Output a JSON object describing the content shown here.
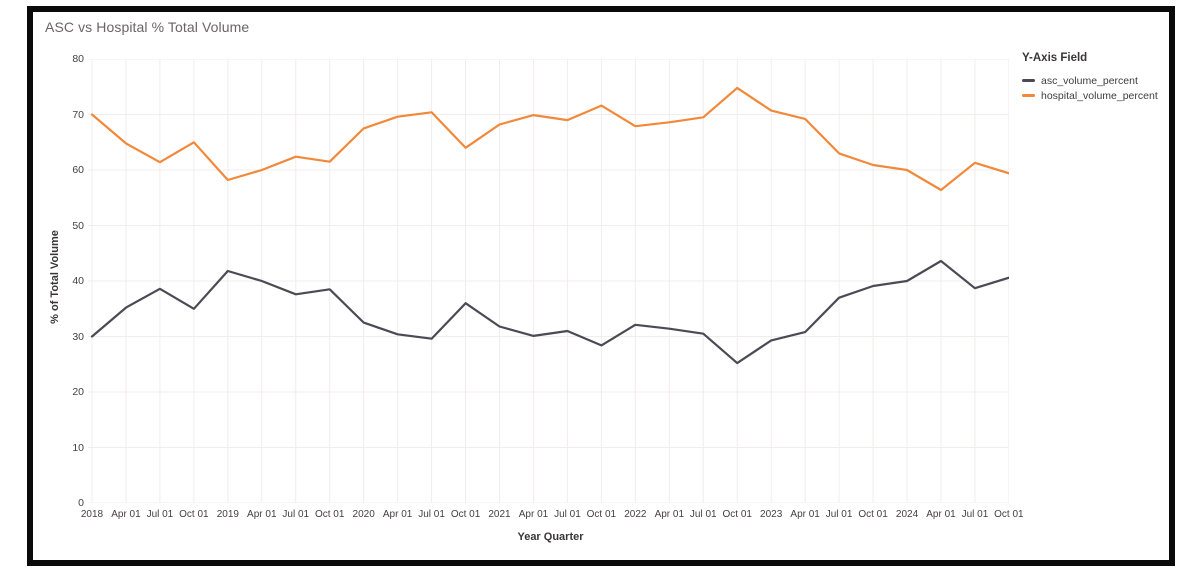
{
  "title": "ASC vs Hospital % Total Volume",
  "legend": {
    "title": "Y-Axis Field"
  },
  "axes": {
    "x_title": "Year Quarter",
    "y_title": "% of Total Volume"
  },
  "theme": {
    "gridline_color": "#f2ecec",
    "tick_text_color": "#443f3f",
    "title_text_color": "#6b6466",
    "frame_border_color": "#0a0a0a"
  },
  "chart_data": {
    "type": "line",
    "title": "ASC vs Hospital % Total Volume",
    "xlabel": "Year Quarter",
    "ylabel": "% of Total Volume",
    "ylim": [
      0,
      80
    ],
    "ytick_interval": 10,
    "yticks": [
      0,
      10,
      20,
      30,
      40,
      50,
      60,
      70,
      80
    ],
    "grid": true,
    "legend_position": "right",
    "legend_title": "Y-Axis Field",
    "categories": [
      "2018",
      "Apr 01",
      "Jul 01",
      "Oct 01",
      "2019",
      "Apr 01",
      "Jul 01",
      "Oct 01",
      "2020",
      "Apr 01",
      "Jul 01",
      "Oct 01",
      "2021",
      "Apr 01",
      "Jul 01",
      "Oct 01",
      "2022",
      "Apr 01",
      "Jul 01",
      "Oct 01",
      "2023",
      "Apr 01",
      "Jul 01",
      "Oct 01",
      "2024",
      "Apr 01",
      "Jul 01",
      "Oct 01"
    ],
    "series": [
      {
        "name": "asc_volume_percent",
        "color": "#4b4a55",
        "values": [
          30.0,
          35.2,
          38.6,
          35.0,
          41.8,
          40.0,
          37.6,
          38.5,
          32.5,
          30.4,
          29.6,
          36.0,
          31.8,
          30.1,
          31.0,
          28.4,
          32.1,
          31.4,
          30.5,
          25.2,
          29.3,
          30.8,
          37.0,
          39.1,
          40.0,
          43.6,
          38.7,
          40.6
        ]
      },
      {
        "name": "hospital_volume_percent",
        "color": "#f2883a",
        "values": [
          70.0,
          64.8,
          61.4,
          65.0,
          58.2,
          60.0,
          62.4,
          61.5,
          67.5,
          69.6,
          70.4,
          64.0,
          68.2,
          69.9,
          69.0,
          71.6,
          67.9,
          68.6,
          69.5,
          74.8,
          70.7,
          69.2,
          63.0,
          60.9,
          60.0,
          56.4,
          61.3,
          59.4
        ]
      }
    ]
  }
}
